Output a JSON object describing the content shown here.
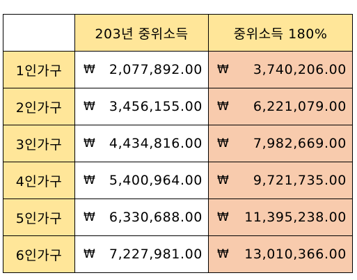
{
  "header": {
    "corner": "",
    "col_a": "203년 중위소득",
    "col_b": "중위소득 180%"
  },
  "currency_symbol": "₩",
  "rows": [
    {
      "label": "1인가구",
      "median": "2,077,892.00",
      "pct180": "3,740,206.00"
    },
    {
      "label": "2인가구",
      "median": "3,456,155.00",
      "pct180": "6,221,079.00"
    },
    {
      "label": "3인가구",
      "median": "4,434,816.00",
      "pct180": "7,982,669.00"
    },
    {
      "label": "4인가구",
      "median": "5,400,964.00",
      "pct180": "9,721,735.00"
    },
    {
      "label": "5인가구",
      "median": "6,330,688.00",
      "pct180": "11,395,238.00"
    },
    {
      "label": "6인가구",
      "median": "7,227,981.00",
      "pct180": "13,010,366.00"
    }
  ],
  "colors": {
    "header_fill": "#ffe699",
    "highlight_fill": "#f8cbad",
    "border": "#000000"
  }
}
